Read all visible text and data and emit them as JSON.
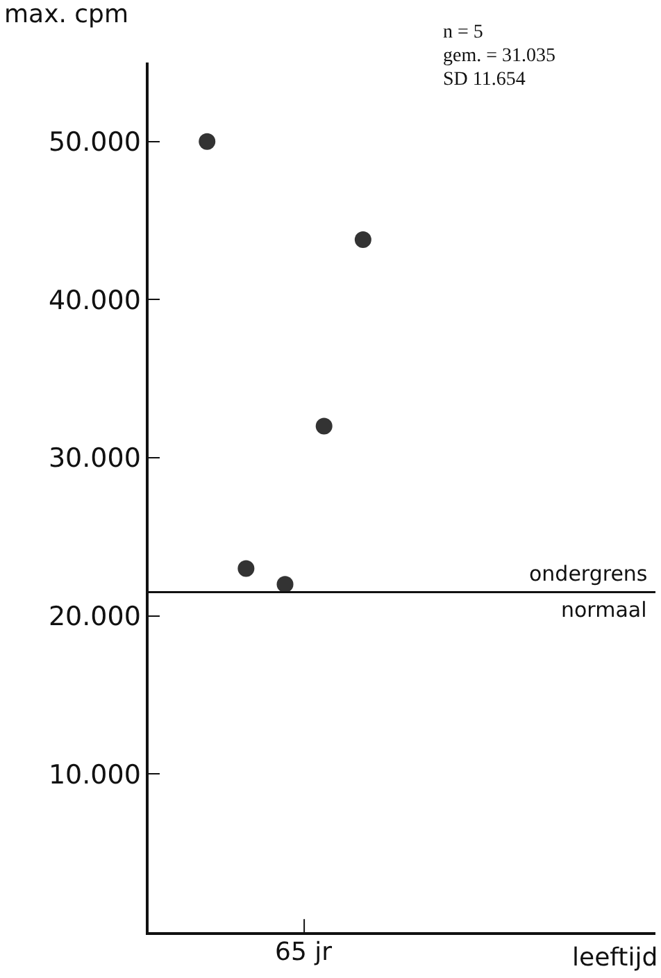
{
  "chart_data": {
    "type": "scatter",
    "ylabel": "max. cpm",
    "xlabel": "leeftijd",
    "categories": [
      null,
      null,
      null,
      null,
      null,
      null,
      null,
      null,
      null,
      null,
      null,
      null,
      null
    ],
    "values": [
      null,
      50000,
      23000,
      22000,
      32000,
      43800,
      null,
      null,
      null,
      null,
      null,
      null,
      null
    ],
    "color": "#333333",
    "marker": "circle",
    "ylim": [
      0,
      55000
    ],
    "yticks": [
      {
        "value": 10000,
        "label": "10.000"
      },
      {
        "value": 20000,
        "label": "20.000"
      },
      {
        "value": 30000,
        "label": "30.000"
      },
      {
        "value": 40000,
        "label": "40.000"
      },
      {
        "value": 50000,
        "label": "50.000"
      }
    ],
    "ref_lines": [
      {
        "axis": "y",
        "value": 21500,
        "label": "ondergrens normaal",
        "color": "#111111"
      }
    ],
    "annotations": [
      "n = 5",
      "gem. = 31.035",
      "SD 11.654",
      "65 jr"
    ]
  }
}
